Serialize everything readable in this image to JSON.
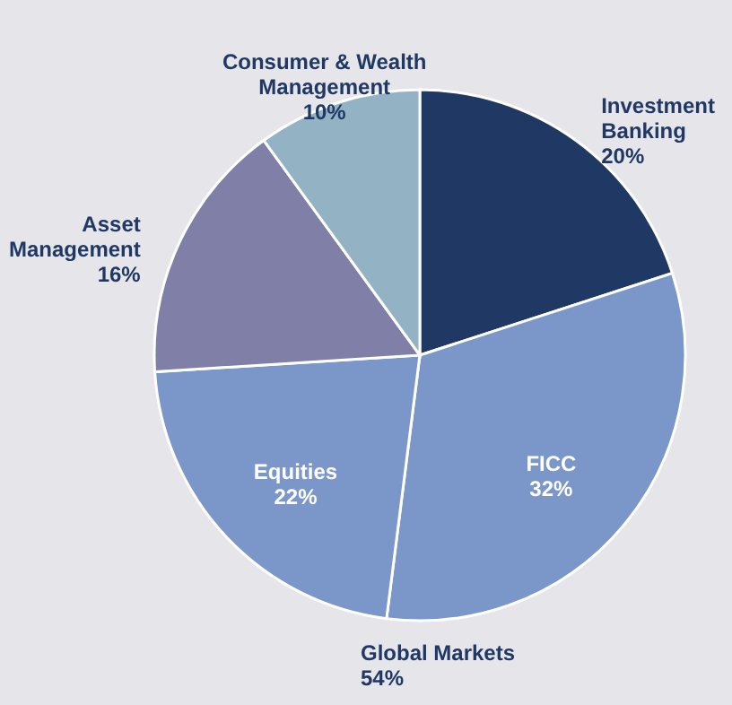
{
  "chart_data": {
    "type": "pie",
    "categories": [
      "Investment Banking",
      "FICC",
      "Equities",
      "Asset Management",
      "Consumer & Wealth Management"
    ],
    "values": [
      20,
      32,
      22,
      16,
      10
    ],
    "value_labels": [
      "20%",
      "32%",
      "22%",
      "16%",
      "10%"
    ],
    "colors": [
      "#203864",
      "#7b96c8",
      "#7b96c8",
      "#7f7fa8",
      "#93b3c4"
    ],
    "annotations": [
      "Global Markets 54%"
    ]
  }
}
